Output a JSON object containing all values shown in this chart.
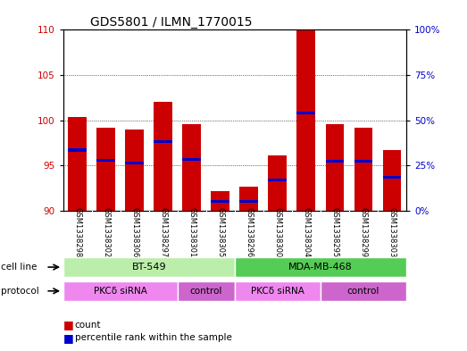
{
  "title": "GDS5801 / ILMN_1770015",
  "samples": [
    "GSM1338298",
    "GSM1338302",
    "GSM1338306",
    "GSM1338297",
    "GSM1338301",
    "GSM1338305",
    "GSM1338296",
    "GSM1338300",
    "GSM1338304",
    "GSM1338295",
    "GSM1338299",
    "GSM1338303"
  ],
  "bar_bottom": 90,
  "bar_tops": [
    100.4,
    99.2,
    99.0,
    102.0,
    99.6,
    92.2,
    92.6,
    96.1,
    110.0,
    99.6,
    99.2,
    96.7
  ],
  "percentile_values": [
    96.7,
    95.6,
    95.3,
    97.6,
    95.7,
    91.0,
    91.0,
    93.4,
    100.8,
    95.5,
    95.5,
    93.7
  ],
  "ylim_left": [
    90,
    110
  ],
  "ylim_right": [
    0,
    100
  ],
  "yticks_left": [
    90,
    95,
    100,
    105,
    110
  ],
  "yticks_right": [
    0,
    25,
    50,
    75,
    100
  ],
  "bar_color": "#cc0000",
  "percentile_color": "#0000cc",
  "cell_line_groups": [
    {
      "label": "BT-549",
      "start": 0,
      "end": 5,
      "color": "#bbeeaa"
    },
    {
      "label": "MDA-MB-468",
      "start": 6,
      "end": 11,
      "color": "#55cc55"
    }
  ],
  "protocol_groups": [
    {
      "label": "PKCδ siRNA",
      "start": 0,
      "end": 3,
      "color": "#ee88ee"
    },
    {
      "label": "control",
      "start": 4,
      "end": 5,
      "color": "#cc66cc"
    },
    {
      "label": "PKCδ siRNA",
      "start": 6,
      "end": 8,
      "color": "#ee88ee"
    },
    {
      "label": "control",
      "start": 9,
      "end": 11,
      "color": "#cc66cc"
    }
  ],
  "bg_color": "#d8d8d8",
  "legend_count_color": "#cc0000",
  "legend_pct_color": "#0000cc"
}
